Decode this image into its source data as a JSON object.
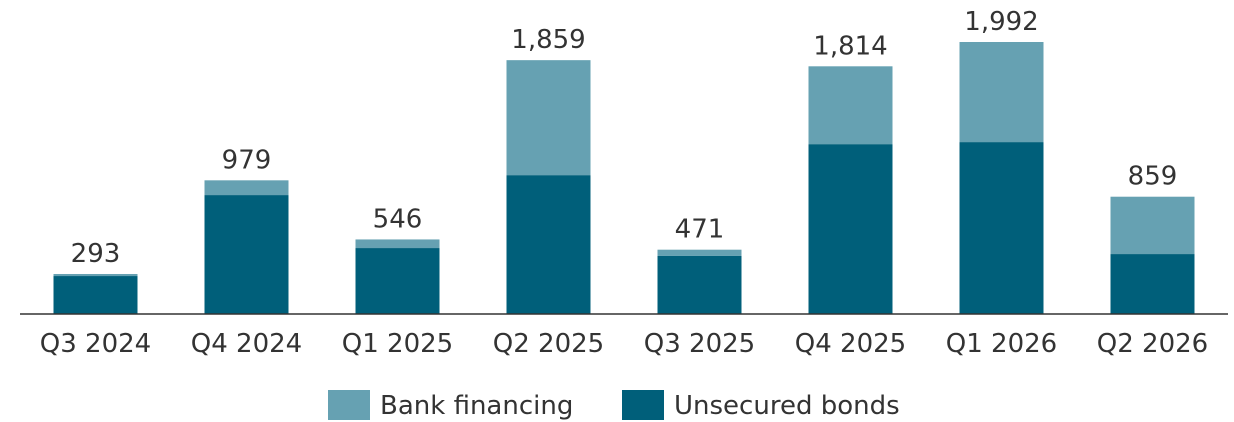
{
  "chart_data": {
    "type": "stacked_bar",
    "categories": [
      "Q3 2024",
      "Q4 2024",
      "Q1 2025",
      "Q2 2025",
      "Q3 2025",
      "Q4 2025",
      "Q1 2026",
      "Q2 2026"
    ],
    "series": [
      {
        "name": "Unsecured bonds",
        "color": "#005f7a",
        "values": [
          278,
          871,
          483,
          1017,
          425,
          1244,
          1259,
          439
        ]
      },
      {
        "name": "Bank financing",
        "color": "#66a1b2",
        "values": [
          15,
          108,
          63,
          842,
          46,
          570,
          733,
          420
        ]
      }
    ],
    "totals": [
      293,
      979,
      546,
      1859,
      471,
      1814,
      1992,
      859
    ],
    "value_labels": [
      "293",
      "979",
      "546",
      "1,859",
      "471",
      "1,814",
      "1,992",
      "859"
    ],
    "legend": "bottom"
  }
}
